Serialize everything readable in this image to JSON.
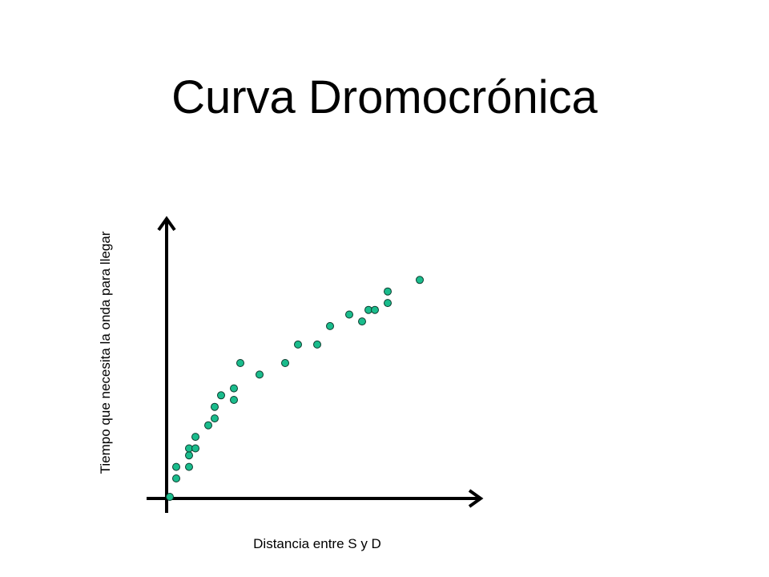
{
  "slide": {
    "title": "Curva Dromocrónica"
  },
  "chart_data": {
    "type": "scatter",
    "title": "Curva Dromocrónica",
    "xlabel": "Distancia entre S y D",
    "ylabel": "Tiempo que necesita la onda para llegar",
    "xlim": [
      0,
      100
    ],
    "ylim": [
      0,
      100
    ],
    "grid": false,
    "legend": "none",
    "marker_color": "#1abc8c",
    "points": [
      {
        "x": 1.0,
        "y": 0.0
      },
      {
        "x": 3.0,
        "y": 8.0
      },
      {
        "x": 3.0,
        "y": 13.0
      },
      {
        "x": 7.0,
        "y": 13.0
      },
      {
        "x": 7.0,
        "y": 18.0
      },
      {
        "x": 7.0,
        "y": 21.0
      },
      {
        "x": 9.0,
        "y": 21.0
      },
      {
        "x": 9.0,
        "y": 26.0
      },
      {
        "x": 13.0,
        "y": 31.0
      },
      {
        "x": 15.0,
        "y": 34.0
      },
      {
        "x": 15.0,
        "y": 39.0
      },
      {
        "x": 17.0,
        "y": 44.0
      },
      {
        "x": 21.0,
        "y": 42.0
      },
      {
        "x": 21.0,
        "y": 47.0
      },
      {
        "x": 23.0,
        "y": 58.0
      },
      {
        "x": 29.0,
        "y": 53.0
      },
      {
        "x": 37.0,
        "y": 58.0
      },
      {
        "x": 41.0,
        "y": 66.0
      },
      {
        "x": 47.0,
        "y": 66.0
      },
      {
        "x": 51.0,
        "y": 74.0
      },
      {
        "x": 57.0,
        "y": 79.0
      },
      {
        "x": 61.0,
        "y": 76.0
      },
      {
        "x": 63.0,
        "y": 81.0
      },
      {
        "x": 65.0,
        "y": 81.0
      },
      {
        "x": 69.0,
        "y": 84.0
      },
      {
        "x": 69.0,
        "y": 89.0
      },
      {
        "x": 79.0,
        "y": 94.0
      }
    ]
  }
}
